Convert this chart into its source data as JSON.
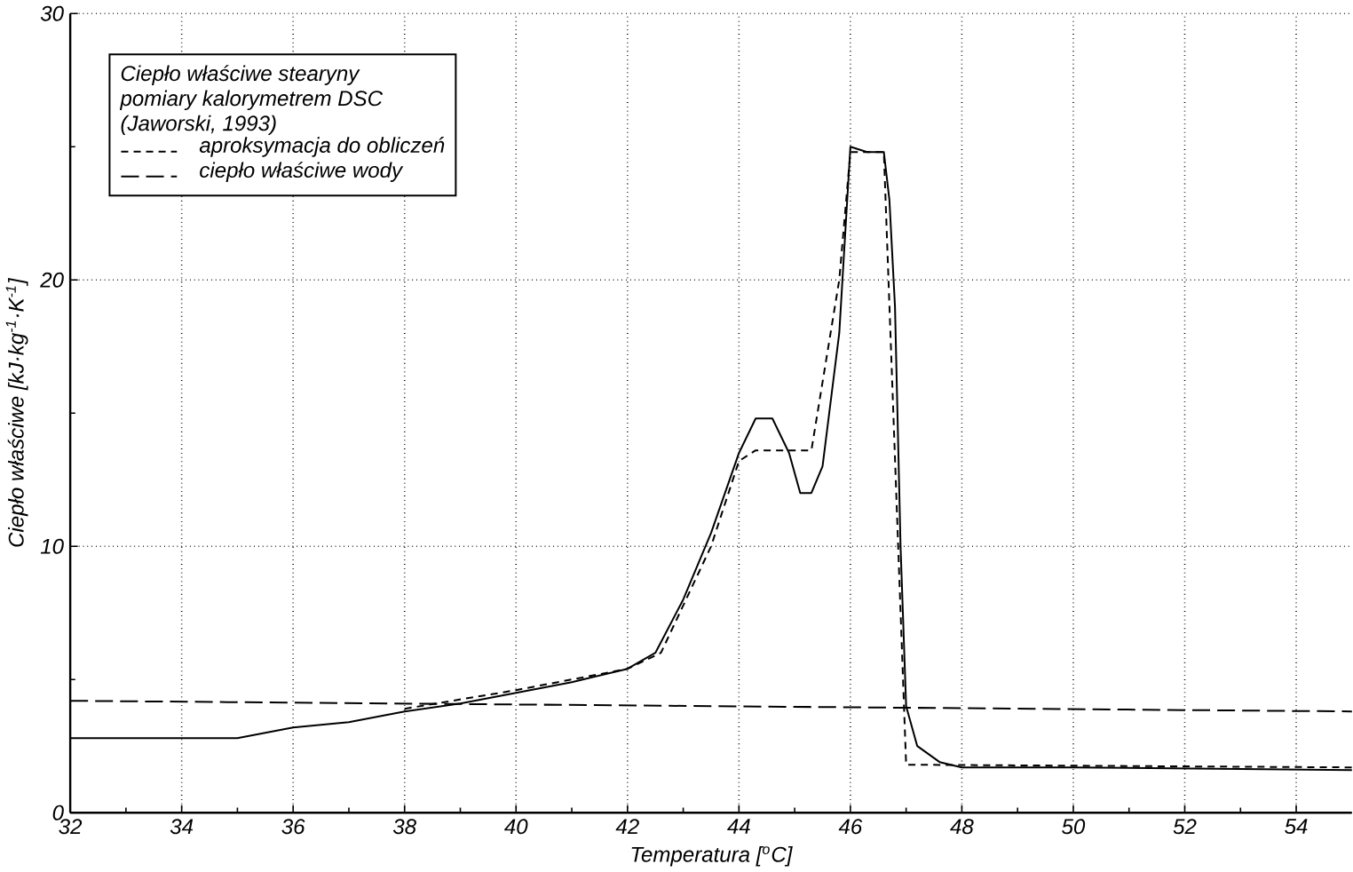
{
  "chart_data": {
    "type": "line",
    "xlabel": "Temperatura [$^{o}$C]",
    "ylabel": "Ciepło właściwe [kJ·kg$^{-1}$·K$^{-1}$]",
    "legend_title": "Ciepło właściwe stearyny pomiary kalorymetrem DSC (Jaworski, 1993)",
    "xlim": [
      32,
      55
    ],
    "ylim": [
      0,
      30
    ],
    "xticks": [
      32,
      34,
      36,
      38,
      40,
      42,
      44,
      46,
      48,
      50,
      52,
      54
    ],
    "yticks": [
      0,
      10,
      20,
      30
    ],
    "grid": true,
    "legend": "top left",
    "series": [
      {
        "color": "#000000",
        "line_style": "solid",
        "x": [
          32,
          35,
          36,
          37,
          38,
          39,
          40,
          41,
          42,
          42.5,
          43,
          43.5,
          44,
          44.3,
          44.6,
          44.9,
          45.1,
          45.3,
          45.5,
          45.8,
          46,
          46.3,
          46.6,
          46.7,
          46.8,
          46.9,
          47,
          47.2,
          47.6,
          48,
          50,
          55
        ],
        "values": [
          2.8,
          2.8,
          3.2,
          3.4,
          3.8,
          4.1,
          4.5,
          4.9,
          5.4,
          6,
          8,
          10.5,
          13.5,
          14.8,
          14.8,
          13.5,
          12,
          12,
          13,
          18,
          25,
          24.8,
          24.8,
          23,
          19,
          10,
          4,
          2.5,
          1.9,
          1.7,
          1.7,
          1.6
        ]
      },
      {
        "name": "aproksymacja do obliczeń",
        "color": "#000000",
        "line_style": "dashed",
        "x": [
          38,
          40,
          42,
          42.6,
          43.5,
          44,
          44.3,
          45.3,
          45.8,
          46,
          46.6,
          47,
          55
        ],
        "values": [
          3.9,
          4.6,
          5.4,
          6,
          10,
          13.2,
          13.6,
          13.6,
          20,
          24.8,
          24.8,
          1.8,
          1.7
        ]
      },
      {
        "name": "ciepło właściwe wody",
        "color": "#000000",
        "line_style": "loosely dashed",
        "x": [
          32,
          55
        ],
        "values": [
          4.2,
          3.8
        ]
      }
    ]
  }
}
